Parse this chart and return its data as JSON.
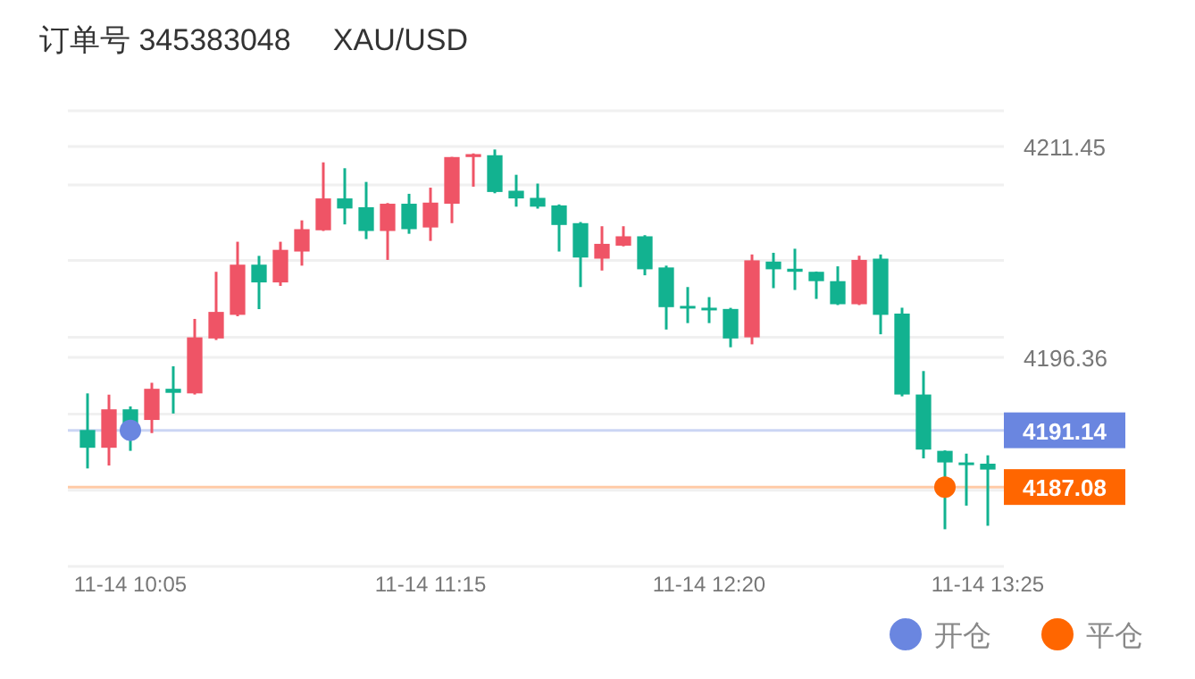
{
  "chart_data": {
    "type": "candlestick",
    "title": "订单号 345383048     XAU/USD",
    "categories": [
      null,
      null,
      "11-14 10:05",
      null,
      null,
      null,
      null,
      null,
      null,
      null,
      null,
      null,
      null,
      null,
      null,
      null,
      "11-14 11:15",
      null,
      null,
      null,
      null,
      null,
      null,
      null,
      null,
      null,
      null,
      null,
      null,
      "11-14 12:20",
      null,
      null,
      null,
      null,
      null,
      null,
      null,
      null,
      null,
      null,
      null,
      null,
      "11-14 13:25"
    ],
    "ohlc": [
      [
        4191.16,
        4193.78,
        4188.41,
        4189.89
      ],
      [
        4189.89,
        4193.69,
        4188.62,
        4192.64
      ],
      [
        4192.64,
        4192.85,
        4189.67,
        4191.6
      ],
      [
        4191.88,
        4194.54,
        4190.94,
        4194.11
      ],
      [
        4194.11,
        4195.72,
        4192.34,
        4193.82
      ],
      [
        4193.78,
        4199.11,
        4193.7,
        4197.79
      ],
      [
        4197.71,
        4202.48,
        4197.6,
        4199.61
      ],
      [
        4199.4,
        4204.63,
        4199.3,
        4202.99
      ],
      [
        4202.99,
        4203.62,
        4199.81,
        4201.72
      ],
      [
        4201.72,
        4204.63,
        4201.47,
        4204.05
      ],
      [
        4203.93,
        4206.16,
        4202.92,
        4205.53
      ],
      [
        4205.45,
        4210.31,
        4205.4,
        4207.73
      ],
      [
        4207.73,
        4209.89,
        4205.87,
        4207.01
      ],
      [
        4207.1,
        4208.91,
        4204.82,
        4205.4
      ],
      [
        4205.4,
        4207.4,
        4203.33,
        4207.35
      ],
      [
        4207.35,
        4208.06,
        4205.2,
        4205.53
      ],
      [
        4205.65,
        4208.5,
        4204.69,
        4207.43
      ],
      [
        4207.35,
        4210.7,
        4205.96,
        4210.69
      ],
      [
        4210.69,
        4210.95,
        4208.57,
        4210.9
      ],
      [
        4210.82,
        4211.23,
        4208.1,
        4208.19
      ],
      [
        4208.28,
        4209.42,
        4207.14,
        4207.73
      ],
      [
        4207.77,
        4208.79,
        4207.0,
        4207.14
      ],
      [
        4207.23,
        4207.3,
        4203.93,
        4205.83
      ],
      [
        4205.96,
        4206.04,
        4201.39,
        4203.5
      ],
      [
        4203.42,
        4205.74,
        4202.57,
        4204.48
      ],
      [
        4204.35,
        4205.74,
        4204.3,
        4205.02
      ],
      [
        4205.02,
        4205.1,
        4202.23,
        4202.66
      ],
      [
        4202.79,
        4202.92,
        4198.35,
        4199.95
      ],
      [
        4200.04,
        4201.39,
        4198.81,
        4199.91
      ],
      [
        4199.91,
        4200.67,
        4198.81,
        4199.78
      ],
      [
        4199.82,
        4199.9,
        4197.08,
        4197.71
      ],
      [
        4197.79,
        4203.72,
        4197.29,
        4203.3
      ],
      [
        4203.21,
        4203.84,
        4201.31,
        4202.66
      ],
      [
        4202.7,
        4204.13,
        4201.18,
        4202.48
      ],
      [
        4202.48,
        4202.5,
        4200.54,
        4201.81
      ],
      [
        4201.81,
        4202.87,
        4200.1,
        4200.16
      ],
      [
        4200.16,
        4203.63,
        4200.1,
        4203.33
      ],
      [
        4203.42,
        4203.72,
        4198.01,
        4199.4
      ],
      [
        4199.49,
        4199.91,
        4193.57,
        4193.7
      ],
      [
        4193.7,
        4195.38,
        4189.13,
        4189.76
      ],
      [
        4189.67,
        4189.7,
        4184.06,
        4188.84
      ],
      [
        4188.84,
        4189.47,
        4185.75,
        4188.75
      ],
      [
        4188.75,
        4189.35,
        4184.31,
        4188.33
      ]
    ],
    "colors": [
      "#12b290",
      "#ef5466",
      "#12b290",
      "#ef5466",
      "#12b290",
      "#ef5466",
      "#ef5466",
      "#ef5466",
      "#12b290",
      "#ef5466",
      "#ef5466",
      "#ef5466",
      "#12b290",
      "#12b290",
      "#ef5466",
      "#12b290",
      "#ef5466",
      "#ef5466",
      "#ef5466",
      "#12b290",
      "#12b290",
      "#12b290",
      "#12b290",
      "#12b290",
      "#ef5466",
      "#ef5466",
      "#12b290",
      "#12b290",
      "#12b290",
      "#12b290",
      "#12b290",
      "#ef5466",
      "#12b290",
      "#12b290",
      "#12b290",
      "#12b290",
      "#ef5466",
      "#12b290",
      "#12b290",
      "#12b290",
      "#12b290",
      "#12b290",
      "#12b290"
    ],
    "series": [
      {
        "name": "开仓",
        "type": "scatter",
        "color": "#6a86e0",
        "values": [
          null,
          null,
          4191.14,
          null,
          null,
          null,
          null,
          null,
          null,
          null,
          null,
          null,
          null,
          null,
          null,
          null,
          null,
          null,
          null,
          null,
          null,
          null,
          null,
          null,
          null,
          null,
          null,
          null,
          null,
          null,
          null,
          null,
          null,
          null,
          null,
          null,
          null,
          null,
          null,
          null,
          null,
          null,
          null
        ]
      },
      {
        "name": "平仓",
        "type": "scatter",
        "color": "#ff6600",
        "values": [
          null,
          null,
          null,
          null,
          null,
          null,
          null,
          null,
          null,
          null,
          null,
          null,
          null,
          null,
          null,
          null,
          null,
          null,
          null,
          null,
          null,
          null,
          null,
          null,
          null,
          null,
          null,
          null,
          null,
          null,
          null,
          null,
          null,
          null,
          null,
          null,
          null,
          null,
          null,
          null,
          4187.08,
          null,
          null
        ]
      }
    ],
    "ylim": [
      4181.4,
      4214.0
    ],
    "yticks": [
      4211.45,
      {
        "value": 4208.7,
        "label": null
      },
      {
        "value": 4203.3,
        "label": null
      },
      {
        "value": 4197.8,
        "label": null
      },
      4196.36,
      {
        "value": 4192.3,
        "label": null
      },
      {
        "value": 4186.85,
        "label": null
      }
    ],
    "ref_lines": [
      {
        "axis": "y",
        "value": 4191.14,
        "label": "4191.14",
        "color": "#6a86e0"
      },
      {
        "axis": "y",
        "value": 4187.08,
        "label": "4187.08",
        "color": "#ff6600"
      }
    ],
    "grid": "y",
    "marker": "circle",
    "legend": "bottom right"
  }
}
